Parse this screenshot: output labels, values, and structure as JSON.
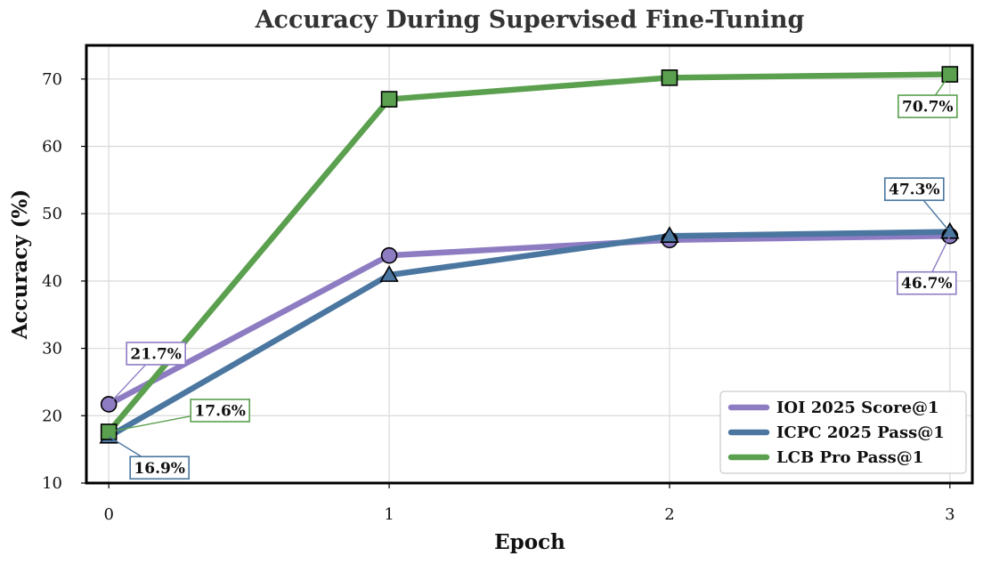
{
  "chart_data": {
    "type": "line",
    "title": "Accuracy During Supervised Fine-Tuning",
    "xlabel": "Epoch",
    "ylabel": "Accuracy (%)",
    "x": [
      0,
      1,
      2,
      3
    ],
    "xlim": [
      -0.08,
      3.08
    ],
    "ylim": [
      10,
      75
    ],
    "xticks": [
      "0",
      "1",
      "2",
      "3"
    ],
    "yticks": [
      "10",
      "20",
      "30",
      "40",
      "50",
      "60",
      "70"
    ],
    "grid": true,
    "legend_position": "lower-right",
    "series": [
      {
        "name": "IOI 2025 Score@1",
        "values": [
          21.7,
          43.8,
          46.1,
          46.7
        ],
        "color": "#8e7cc3",
        "marker": "circle"
      },
      {
        "name": "ICPC 2025 Pass@1",
        "values": [
          16.9,
          40.9,
          46.7,
          47.3
        ],
        "color": "#4a76a0",
        "marker": "triangle"
      },
      {
        "name": "LCB Pro Pass@1",
        "values": [
          17.6,
          67.0,
          70.2,
          70.7
        ],
        "color": "#5aa04e",
        "marker": "square"
      }
    ],
    "annotations": [
      {
        "text": "21.7%",
        "series": 0,
        "point": 0
      },
      {
        "text": "16.9%",
        "series": 1,
        "point": 0
      },
      {
        "text": "17.6%",
        "series": 2,
        "point": 0
      },
      {
        "text": "70.7%",
        "series": 2,
        "point": 3
      },
      {
        "text": "47.3%",
        "series": 1,
        "point": 3
      },
      {
        "text": "46.7%",
        "series": 0,
        "point": 3
      }
    ]
  }
}
